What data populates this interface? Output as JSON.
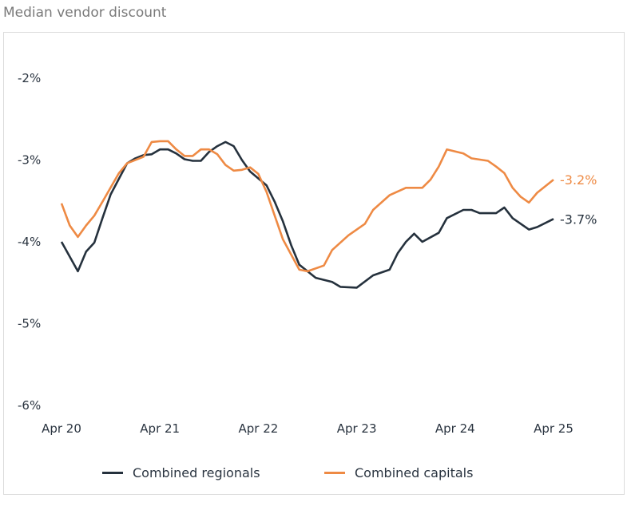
{
  "chart_data": {
    "type": "line",
    "title": "Median vendor discount",
    "xlabel": "",
    "ylabel": "",
    "ylim": [
      -6,
      -2
    ],
    "yticks": [
      "-2%",
      "-3%",
      "-4%",
      "-5%",
      "-6%"
    ],
    "ytick_values": [
      -2,
      -3,
      -4,
      -5,
      -6
    ],
    "xticks": [
      "Apr 20",
      "Apr 21",
      "Apr 22",
      "Apr 23",
      "Apr 24",
      "Apr 25"
    ],
    "xtick_dates": [
      "2020-04",
      "2021-04",
      "2022-04",
      "2023-04",
      "2024-04",
      "2025-04"
    ],
    "xlim": [
      "2020-04",
      "2025-04"
    ],
    "grid": false,
    "legend": "bottom",
    "series": [
      {
        "name": "Combined regionals",
        "color": "#25313d",
        "end_label": "-3.7%",
        "points": [
          [
            "2020-04",
            -4.0
          ],
          [
            "2020-06",
            -4.36
          ],
          [
            "2020-07",
            -4.12
          ],
          [
            "2020-08",
            -4.01
          ],
          [
            "2020-09",
            -3.71
          ],
          [
            "2020-10",
            -3.42
          ],
          [
            "2020-12",
            -3.04
          ],
          [
            "2021-01",
            -2.98
          ],
          [
            "2021-02",
            -2.94
          ],
          [
            "2021-03",
            -2.93
          ],
          [
            "2021-04",
            -2.87
          ],
          [
            "2021-05",
            -2.87
          ],
          [
            "2021-06",
            -2.92
          ],
          [
            "2021-07",
            -2.99
          ],
          [
            "2021-08",
            -3.01
          ],
          [
            "2021-09",
            -3.01
          ],
          [
            "2021-10",
            -2.9
          ],
          [
            "2021-11",
            -2.83
          ],
          [
            "2021-12",
            -2.78
          ],
          [
            "2022-01",
            -2.83
          ],
          [
            "2022-02",
            -3.0
          ],
          [
            "2022-03",
            -3.14
          ],
          [
            "2022-05",
            -3.31
          ],
          [
            "2022-06",
            -3.51
          ],
          [
            "2022-07",
            -3.75
          ],
          [
            "2022-08",
            -4.04
          ],
          [
            "2022-09",
            -4.28
          ],
          [
            "2022-11",
            -4.44
          ],
          [
            "2023-01",
            -4.49
          ],
          [
            "2023-02",
            -4.55
          ],
          [
            "2023-04",
            -4.56
          ],
          [
            "2023-06",
            -4.41
          ],
          [
            "2023-08",
            -4.34
          ],
          [
            "2023-09",
            -4.14
          ],
          [
            "2023-10",
            -4.0
          ],
          [
            "2023-11",
            -3.9
          ],
          [
            "2023-12",
            -4.0
          ],
          [
            "2024-02",
            -3.89
          ],
          [
            "2024-03",
            -3.71
          ],
          [
            "2024-05",
            -3.61
          ],
          [
            "2024-06",
            -3.61
          ],
          [
            "2024-07",
            -3.65
          ],
          [
            "2024-09",
            -3.65
          ],
          [
            "2024-10",
            -3.58
          ],
          [
            "2024-11",
            -3.71
          ],
          [
            "2025-01",
            -3.85
          ],
          [
            "2025-02",
            -3.82
          ],
          [
            "2025-04",
            -3.72
          ]
        ]
      },
      {
        "name": "Combined capitals",
        "color": "#ee8a44",
        "end_label": "-3.2%",
        "points": [
          [
            "2020-04",
            -3.53
          ],
          [
            "2020-05",
            -3.8
          ],
          [
            "2020-06",
            -3.94
          ],
          [
            "2020-07",
            -3.8
          ],
          [
            "2020-08",
            -3.68
          ],
          [
            "2020-09",
            -3.51
          ],
          [
            "2020-11",
            -3.16
          ],
          [
            "2020-12",
            -3.04
          ],
          [
            "2021-02",
            -2.96
          ],
          [
            "2021-03",
            -2.78
          ],
          [
            "2021-04",
            -2.77
          ],
          [
            "2021-05",
            -2.77
          ],
          [
            "2021-06",
            -2.87
          ],
          [
            "2021-07",
            -2.95
          ],
          [
            "2021-08",
            -2.95
          ],
          [
            "2021-09",
            -2.87
          ],
          [
            "2021-10",
            -2.87
          ],
          [
            "2021-11",
            -2.93
          ],
          [
            "2021-12",
            -3.06
          ],
          [
            "2022-01",
            -3.13
          ],
          [
            "2022-02",
            -3.12
          ],
          [
            "2022-03",
            -3.09
          ],
          [
            "2022-04",
            -3.17
          ],
          [
            "2022-05",
            -3.39
          ],
          [
            "2022-06",
            -3.68
          ],
          [
            "2022-07",
            -3.97
          ],
          [
            "2022-09",
            -4.34
          ],
          [
            "2022-10",
            -4.36
          ],
          [
            "2022-12",
            -4.29
          ],
          [
            "2023-01",
            -4.1
          ],
          [
            "2023-03",
            -3.92
          ],
          [
            "2023-05",
            -3.78
          ],
          [
            "2023-06",
            -3.61
          ],
          [
            "2023-08",
            -3.43
          ],
          [
            "2023-10",
            -3.34
          ],
          [
            "2023-12",
            -3.34
          ],
          [
            "2024-01",
            -3.24
          ],
          [
            "2024-02",
            -3.08
          ],
          [
            "2024-03",
            -2.87
          ],
          [
            "2024-05",
            -2.92
          ],
          [
            "2024-06",
            -2.98
          ],
          [
            "2024-08",
            -3.01
          ],
          [
            "2024-09",
            -3.08
          ],
          [
            "2024-10",
            -3.16
          ],
          [
            "2024-11",
            -3.34
          ],
          [
            "2024-12",
            -3.45
          ],
          [
            "2025-01",
            -3.52
          ],
          [
            "2025-02",
            -3.4
          ],
          [
            "2025-04",
            -3.24
          ]
        ]
      }
    ]
  }
}
